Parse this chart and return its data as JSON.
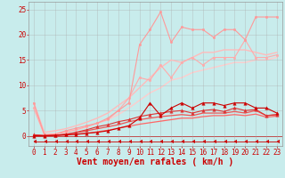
{
  "x": [
    0,
    1,
    2,
    3,
    4,
    5,
    6,
    7,
    8,
    9,
    10,
    11,
    12,
    13,
    14,
    15,
    16,
    17,
    18,
    19,
    20,
    21,
    22,
    23
  ],
  "background_color": "#c8ecec",
  "grid_color": "#aaaaaa",
  "xlabel": "Vent moyen/en rafales ( km/h )",
  "xlabel_color": "#cc0000",
  "xlabel_fontsize": 7,
  "tick_color": "#cc0000",
  "tick_fontsize": 5.5,
  "ylim": [
    -2.0,
    26.5
  ],
  "xlim": [
    -0.5,
    23.5
  ],
  "yticks": [
    0,
    5,
    10,
    15,
    20,
    25
  ],
  "xticks": [
    0,
    1,
    2,
    3,
    4,
    5,
    6,
    7,
    8,
    9,
    10,
    11,
    12,
    13,
    14,
    15,
    16,
    17,
    18,
    19,
    20,
    21,
    22,
    23
  ],
  "lines": [
    {
      "y": [
        6.5,
        0.2,
        0.3,
        1.0,
        1.5,
        2.0,
        2.5,
        3.5,
        5.0,
        6.5,
        18.0,
        21.0,
        24.5,
        18.5,
        21.5,
        21.0,
        21.0,
        19.5,
        21.0,
        21.0,
        19.0,
        23.5,
        23.5,
        23.5
      ],
      "color": "#ff9999",
      "linewidth": 0.8,
      "marker": "o",
      "markersize": 1.8,
      "zorder": 4
    },
    {
      "y": [
        5.5,
        0.2,
        0.3,
        0.7,
        1.2,
        1.8,
        2.5,
        3.2,
        5.0,
        7.5,
        11.5,
        11.0,
        14.0,
        11.5,
        14.5,
        15.5,
        14.0,
        15.5,
        15.5,
        15.5,
        19.0,
        15.5,
        15.5,
        16.0
      ],
      "color": "#ffaaaa",
      "linewidth": 0.8,
      "marker": "o",
      "markersize": 1.8,
      "zorder": 3
    },
    {
      "y": [
        6.5,
        0.7,
        1.0,
        1.4,
        2.0,
        2.7,
        3.5,
        4.5,
        6.0,
        7.5,
        9.5,
        11.5,
        13.5,
        15.0,
        14.5,
        15.5,
        16.5,
        16.5,
        17.0,
        17.0,
        17.0,
        16.5,
        16.0,
        16.5
      ],
      "color": "#ffbbbb",
      "linewidth": 1.0,
      "marker": null,
      "markersize": 0,
      "zorder": 2
    },
    {
      "y": [
        5.5,
        0.3,
        0.5,
        0.8,
        1.2,
        1.8,
        2.5,
        3.2,
        4.2,
        5.5,
        7.0,
        8.5,
        9.5,
        11.0,
        11.5,
        12.5,
        13.0,
        13.5,
        14.0,
        14.5,
        14.5,
        15.0,
        15.0,
        15.5
      ],
      "color": "#ffcccc",
      "linewidth": 1.0,
      "marker": null,
      "markersize": 0,
      "zorder": 1
    },
    {
      "y": [
        0.0,
        0.0,
        0.1,
        0.2,
        0.3,
        0.5,
        0.7,
        1.0,
        1.5,
        2.0,
        3.5,
        6.5,
        4.0,
        5.5,
        6.5,
        5.5,
        6.5,
        6.5,
        6.0,
        6.5,
        6.5,
        5.5,
        5.5,
        4.5
      ],
      "color": "#cc0000",
      "linewidth": 0.8,
      "marker": "^",
      "markersize": 2.5,
      "zorder": 7
    },
    {
      "y": [
        0.2,
        0.05,
        0.1,
        0.3,
        0.7,
        1.2,
        1.8,
        2.2,
        2.8,
        3.2,
        3.8,
        4.2,
        4.5,
        4.8,
        5.0,
        4.5,
        5.0,
        5.2,
        4.8,
        5.5,
        5.0,
        5.2,
        4.0,
        4.2
      ],
      "color": "#dd3333",
      "linewidth": 0.8,
      "marker": "^",
      "markersize": 2.5,
      "zorder": 6
    },
    {
      "y": [
        0.2,
        0.05,
        0.1,
        0.3,
        0.6,
        1.0,
        1.4,
        1.8,
        2.2,
        2.8,
        3.2,
        3.5,
        3.8,
        4.0,
        4.2,
        4.0,
        4.5,
        4.5,
        4.5,
        4.8,
        4.5,
        5.0,
        4.0,
        4.2
      ],
      "color": "#ee5555",
      "linewidth": 0.9,
      "marker": null,
      "markersize": 0,
      "zorder": 5
    },
    {
      "y": [
        0.1,
        0.02,
        0.05,
        0.15,
        0.3,
        0.5,
        0.8,
        1.1,
        1.5,
        1.9,
        2.3,
        2.6,
        2.9,
        3.2,
        3.5,
        3.5,
        3.8,
        4.0,
        4.0,
        4.2,
        4.0,
        4.3,
        3.7,
        3.9
      ],
      "color": "#ff6666",
      "linewidth": 0.9,
      "marker": null,
      "markersize": 0,
      "zorder": 4
    },
    {
      "y": [
        -1.2,
        -1.2,
        -1.2,
        -1.2,
        -1.2,
        -1.2,
        -1.2,
        -1.2,
        -1.2,
        -1.2,
        -1.2,
        -1.2,
        -1.2,
        -1.2,
        -1.2,
        -1.2,
        -1.2,
        -1.2,
        -1.2,
        -1.2,
        -1.2,
        -1.2,
        -1.2,
        -1.2
      ],
      "color": "#cc0000",
      "linewidth": 0.6,
      "marker": 4,
      "markersize": 3.0,
      "zorder": 8
    }
  ]
}
